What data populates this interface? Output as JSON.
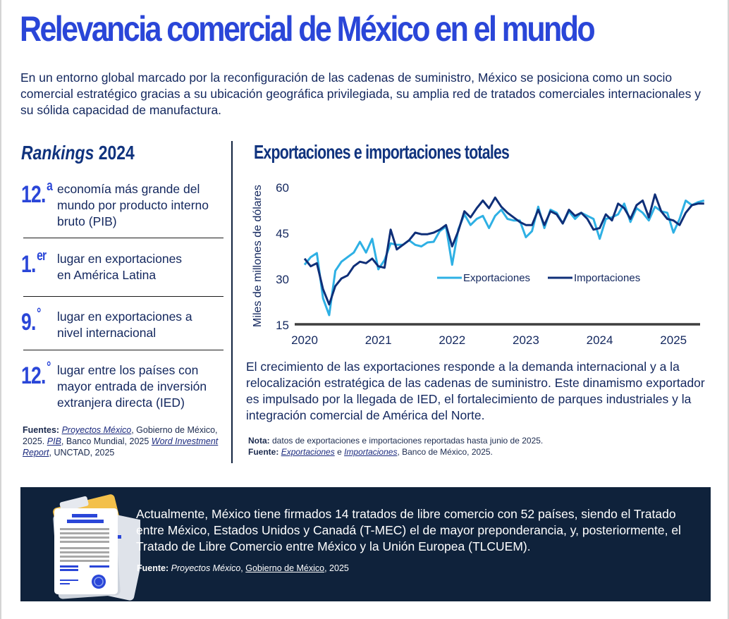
{
  "page": {
    "title": "Relevancia comercial de México en el mundo",
    "intro": "En un entorno global marcado por la reconfiguración de las cadenas de suministro, México se posiciona como un socio comercial estratégico gracias a su ubicación geográfica privilegiada, su amplia red de tratados comerciales internacionales y su sólida capacidad de manufactura."
  },
  "rankings": {
    "title_italic": "Rankings",
    "title_year": "2024",
    "items": [
      {
        "number": "12.",
        "suffix": "a",
        "text": "economía más grande del mundo por producto interno bruto (PIB)"
      },
      {
        "number": "1.",
        "suffix": "er",
        "text": "lugar en exportaciones en América Latina"
      },
      {
        "number": "9.",
        "suffix": "°",
        "text": "lugar en exportaciones a nivel internacional"
      },
      {
        "number": "12.",
        "suffix": "°",
        "text": "lugar entre los países con mayor entrada de inversión extranjera directa (IED)"
      }
    ],
    "sources": {
      "label": "Fuentes:",
      "link1": "Proyectos México",
      "text1": ", Gobierno de México, 2025. ",
      "link2": "PIB",
      "text2": ", Banco Mundial, 2025 ",
      "link3": "Word Investment Report",
      "text3": ", UNCTAD, 2025"
    }
  },
  "chart_section": {
    "title": "Exportaciones e importaciones totales",
    "description": "El crecimiento de las exportaciones responde a la demanda internacional y a la relocalización estratégica de las cadenas de suministro. Este dinamismo exportador es impulsado por la llegada de IED, el fortalecimiento de parques industriales y la integración comercial de América del Norte.",
    "note_label": "Nota:",
    "note_text": " datos de exportaciones e importaciones reportadas hasta junio de 2025.",
    "source_label": "Fuente:",
    "source_link1": "Exportaciones",
    "source_mid": " e ",
    "source_link2": "Importaciones",
    "source_end": ", Banco de México, 2025."
  },
  "chart_data": {
    "type": "line",
    "title": "Exportaciones e importaciones totales",
    "xlabel": "",
    "ylabel": "Miles de millones de dólares",
    "ylim": [
      15,
      60
    ],
    "yticks": [
      15,
      30,
      45,
      60
    ],
    "xticks": [
      "2020",
      "2021",
      "2022",
      "2023",
      "2024",
      "2025"
    ],
    "x_start": "2020-01",
    "x_end": "2025-06",
    "frequency": "monthly",
    "grid": false,
    "legend": "center-right",
    "series": [
      {
        "name": "Exportaciones",
        "color": "#2eb0e4",
        "values": [
          34.5,
          37.0,
          38.3,
          23.5,
          18.0,
          32.5,
          35.5,
          37.0,
          38.5,
          42.0,
          38.5,
          43.0,
          33.0,
          36.0,
          41.5,
          41.0,
          41.0,
          42.5,
          41.0,
          40.5,
          41.8,
          42.0,
          45.5,
          47.0,
          34.5,
          46.0,
          51.0,
          47.5,
          49.5,
          50.5,
          46.5,
          50.5,
          52.5,
          49.5,
          49.0,
          49.0,
          43.5,
          45.5,
          53.5,
          46.5,
          52.5,
          51.5,
          48.0,
          52.0,
          49.5,
          51.5,
          50.5,
          49.5,
          43.0,
          49.5,
          50.0,
          51.0,
          54.5,
          48.5,
          53.0,
          51.5,
          49.0,
          53.5,
          52.0,
          51.5,
          45.0,
          49.5,
          55.5,
          54.0,
          55.0,
          55.5
        ]
      },
      {
        "name": "Importaciones",
        "color": "#0f2f78",
        "values": [
          36.5,
          34.0,
          35.0,
          26.5,
          21.5,
          27.5,
          30.0,
          31.0,
          34.0,
          35.5,
          35.0,
          36.5,
          34.0,
          33.5,
          46.0,
          39.5,
          41.0,
          42.5,
          45.0,
          44.5,
          44.5,
          45.0,
          46.0,
          47.5,
          40.5,
          45.5,
          52.0,
          50.0,
          53.0,
          55.5,
          53.0,
          56.5,
          53.5,
          51.5,
          50.0,
          48.5,
          47.5,
          47.5,
          52.5,
          47.5,
          52.0,
          51.0,
          48.0,
          52.5,
          50.5,
          51.5,
          49.5,
          46.0,
          46.5,
          51.0,
          49.0,
          54.5,
          53.0,
          49.5,
          54.0,
          55.5,
          50.0,
          57.5,
          52.0,
          49.5,
          49.0,
          47.5,
          51.5,
          54.0,
          54.5,
          54.5
        ]
      }
    ]
  },
  "treaties": {
    "text": "Actualmente, México tiene firmados 14 tratados de libre comercio con 52 países, siendo el Tratado entre México, Estados Unidos y Canadá (T-MEC) el de mayor preponderancia, y, posteriormente, el Tratado de Libre Comercio entre México y la Unión Europea (TLCUEM).",
    "source_label": "Fuente:",
    "source_italic": "Proyectos México",
    "source_sep": ", ",
    "source_link": "Gobierno de México",
    "source_end": ", 2025",
    "icon": "document-folder-icon"
  },
  "colors": {
    "title_blue": "#2a46d8",
    "navy": "#10337e",
    "text": "#13275e",
    "box_bg": "#0f223b",
    "exports": "#2eb0e4",
    "imports": "#0f2f78"
  }
}
